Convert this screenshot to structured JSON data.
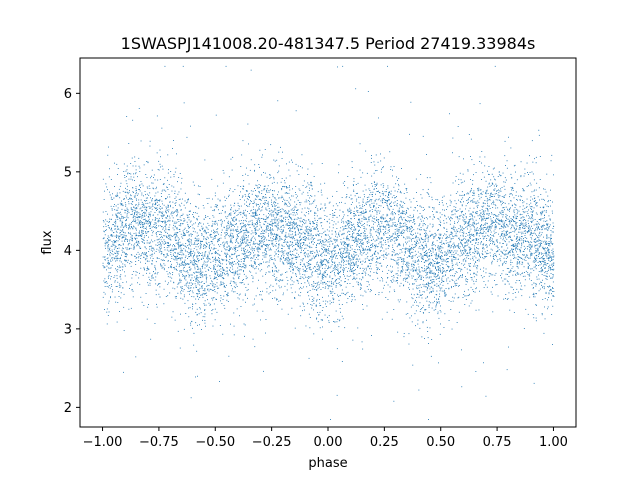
{
  "chart_data": {
    "type": "scatter",
    "title": "1SWASPJ141008.20-481347.5 Period 27419.33984s",
    "xlabel": "phase",
    "ylabel": "flux",
    "xlim": [
      -1.1,
      1.1
    ],
    "ylim": [
      1.75,
      6.45
    ],
    "xticks": [
      -1.0,
      -0.75,
      -0.5,
      -0.25,
      0.0,
      0.25,
      0.5,
      0.75,
      1.0
    ],
    "xtick_labels": [
      "−1.00",
      "−0.75",
      "−0.50",
      "−0.25",
      "0.00",
      "0.25",
      "0.50",
      "0.75",
      "1.00"
    ],
    "yticks": [
      2,
      3,
      4,
      5,
      6
    ],
    "ytick_labels": [
      "2",
      "3",
      "4",
      "5",
      "6"
    ],
    "grid": false,
    "series": [
      {
        "marker_color": "#1f77b4",
        "x_range": [
          -1.0,
          1.0
        ],
        "mean_flux": 4.05,
        "scatter_sigma": 0.38,
        "profile": {
          "x": [
            -1.0,
            -0.85,
            -0.75,
            -0.55,
            -0.4,
            -0.3,
            -0.15,
            0.0,
            0.15,
            0.25,
            0.45,
            0.6,
            0.7,
            0.85,
            1.0
          ],
          "y": [
            4.05,
            4.3,
            4.28,
            3.85,
            4.1,
            4.3,
            4.15,
            3.9,
            4.15,
            4.3,
            3.85,
            4.1,
            4.35,
            4.2,
            3.95
          ]
        }
      }
    ]
  }
}
